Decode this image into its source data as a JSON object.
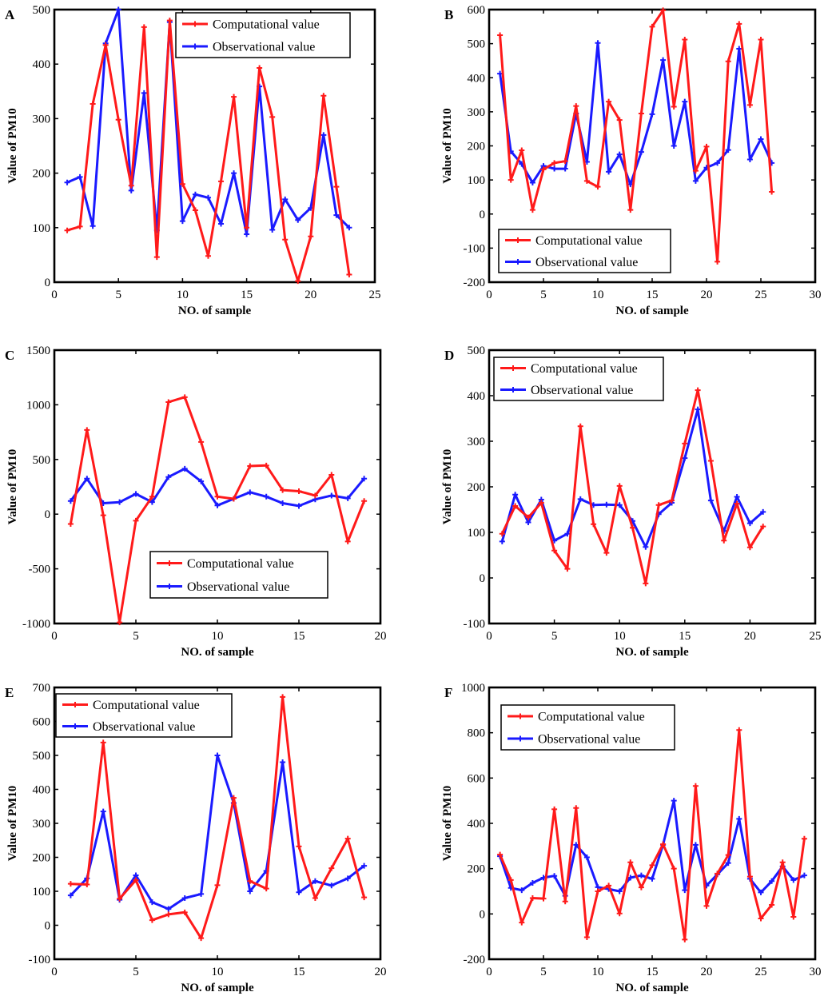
{
  "figure": {
    "colors": {
      "computational": "#ff1a1a",
      "observational": "#1a1aff"
    }
  },
  "chart_data": [
    {
      "panel": "A",
      "type": "line",
      "xlabel": "NO. of sample",
      "ylabel": "Value of PM10",
      "xlim": [
        0,
        25
      ],
      "ylim": [
        0,
        500
      ],
      "xticks": [
        0,
        5,
        10,
        15,
        20,
        25
      ],
      "yticks": [
        0,
        100,
        200,
        300,
        400,
        500
      ],
      "legend": "top-right",
      "series": [
        {
          "name": "Computational value",
          "color": "#ff1a1a",
          "x": [
            1,
            2,
            3,
            4,
            5,
            6,
            7,
            8,
            9,
            10,
            11,
            12,
            13,
            14,
            15,
            16,
            17,
            18,
            19,
            20,
            21,
            22,
            23
          ],
          "values": [
            95,
            102,
            327,
            435,
            298,
            177,
            468,
            46,
            480,
            180,
            132,
            48,
            185,
            340,
            100,
            393,
            303,
            78,
            2,
            84,
            342,
            175,
            14
          ]
        },
        {
          "name": "Observational value",
          "color": "#1a1aff",
          "x": [
            1,
            2,
            3,
            4,
            5,
            6,
            7,
            8,
            9,
            10,
            11,
            12,
            13,
            14,
            15,
            16,
            17,
            18,
            19,
            20,
            21,
            22,
            23
          ],
          "values": [
            183,
            193,
            103,
            438,
            500,
            168,
            347,
            95,
            477,
            112,
            161,
            155,
            107,
            200,
            88,
            359,
            96,
            152,
            114,
            136,
            270,
            123,
            100
          ]
        }
      ]
    },
    {
      "panel": "B",
      "type": "line",
      "xlabel": "NO. of sample",
      "ylabel": "Value of PM10",
      "xlim": [
        0,
        30
      ],
      "ylim": [
        -200,
        600
      ],
      "xticks": [
        0,
        5,
        10,
        15,
        20,
        25,
        30
      ],
      "yticks": [
        -200,
        -100,
        0,
        100,
        200,
        300,
        400,
        500,
        600
      ],
      "legend": "bottom-left",
      "series": [
        {
          "name": "Computational value",
          "color": "#ff1a1a",
          "x": [
            1,
            2,
            3,
            4,
            5,
            6,
            7,
            8,
            9,
            10,
            11,
            12,
            13,
            14,
            15,
            16,
            17,
            18,
            19,
            20,
            21,
            22,
            23,
            24,
            25,
            26
          ],
          "values": [
            525,
            100,
            187,
            12,
            131,
            150,
            155,
            317,
            97,
            80,
            330,
            276,
            12,
            295,
            550,
            598,
            315,
            512,
            127,
            198,
            -140,
            448,
            558,
            320,
            512,
            65
          ]
        },
        {
          "name": "Observational value",
          "color": "#1a1aff",
          "x": [
            1,
            2,
            3,
            4,
            5,
            6,
            7,
            8,
            9,
            10,
            11,
            12,
            13,
            14,
            15,
            16,
            17,
            18,
            19,
            20,
            21,
            22,
            23,
            24,
            25,
            26
          ],
          "values": [
            412,
            184,
            147,
            92,
            141,
            133,
            133,
            295,
            153,
            502,
            124,
            175,
            87,
            182,
            293,
            452,
            200,
            330,
            97,
            136,
            150,
            188,
            485,
            160,
            220,
            150
          ]
        }
      ]
    },
    {
      "panel": "C",
      "type": "line",
      "xlabel": "NO. of sample",
      "ylabel": "Value of PM10",
      "xlim": [
        0,
        20
      ],
      "ylim": [
        -1000,
        1500
      ],
      "xticks": [
        0,
        5,
        10,
        15,
        20
      ],
      "yticks": [
        -1000,
        -500,
        0,
        500,
        1000,
        1500
      ],
      "legend": "bottom-right",
      "series": [
        {
          "name": "Computational value",
          "color": "#ff1a1a",
          "x": [
            1,
            2,
            3,
            4,
            5,
            6,
            7,
            8,
            9,
            10,
            11,
            12,
            13,
            14,
            15,
            16,
            17,
            18,
            19
          ],
          "values": [
            -90,
            770,
            -10,
            -990,
            -60,
            160,
            1025,
            1070,
            660,
            160,
            140,
            440,
            445,
            220,
            210,
            170,
            360,
            -250,
            120
          ]
        },
        {
          "name": "Observational value",
          "color": "#1a1aff",
          "x": [
            1,
            2,
            3,
            4,
            5,
            6,
            7,
            8,
            9,
            10,
            11,
            12,
            13,
            14,
            15,
            16,
            17,
            18,
            19
          ],
          "values": [
            120,
            325,
            100,
            110,
            185,
            110,
            340,
            415,
            300,
            80,
            140,
            200,
            160,
            100,
            75,
            135,
            170,
            145,
            325
          ]
        }
      ]
    },
    {
      "panel": "D",
      "type": "line",
      "xlabel": "NO. of sample",
      "ylabel": "Value of PM10",
      "xlim": [
        0,
        25
      ],
      "ylim": [
        -100,
        500
      ],
      "xticks": [
        0,
        5,
        10,
        15,
        20,
        25
      ],
      "yticks": [
        -100,
        0,
        100,
        200,
        300,
        400,
        500
      ],
      "legend": "top-left",
      "series": [
        {
          "name": "Computational value",
          "color": "#ff1a1a",
          "x": [
            1,
            2,
            3,
            4,
            5,
            6,
            7,
            8,
            9,
            10,
            11,
            12,
            13,
            14,
            15,
            16,
            17,
            18,
            19,
            20,
            21
          ],
          "values": [
            97,
            158,
            133,
            165,
            60,
            20,
            333,
            118,
            55,
            202,
            110,
            -12,
            160,
            170,
            295,
            412,
            257,
            82,
            163,
            67,
            113
          ]
        },
        {
          "name": "Observational value",
          "color": "#1a1aff",
          "x": [
            1,
            2,
            3,
            4,
            5,
            6,
            7,
            8,
            9,
            10,
            11,
            12,
            13,
            14,
            15,
            16,
            17,
            18,
            19,
            20,
            21
          ],
          "values": [
            80,
            183,
            122,
            172,
            82,
            97,
            173,
            160,
            161,
            160,
            125,
            68,
            140,
            165,
            263,
            370,
            170,
            103,
            178,
            120,
            145
          ]
        }
      ]
    },
    {
      "panel": "E",
      "type": "line",
      "xlabel": "NO. of sample",
      "ylabel": "Value of PM10",
      "xlim": [
        0,
        20
      ],
      "ylim": [
        -100,
        700
      ],
      "xticks": [
        0,
        5,
        10,
        15,
        20
      ],
      "yticks": [
        -100,
        0,
        100,
        200,
        300,
        400,
        500,
        600,
        700
      ],
      "legend": "top-left",
      "series": [
        {
          "name": "Computational value",
          "color": "#ff1a1a",
          "x": [
            1,
            2,
            3,
            4,
            5,
            6,
            7,
            8,
            9,
            10,
            11,
            12,
            13,
            14,
            15,
            16,
            17,
            18,
            19
          ],
          "values": [
            122,
            120,
            538,
            78,
            133,
            15,
            32,
            38,
            -38,
            118,
            375,
            130,
            108,
            672,
            232,
            80,
            168,
            255,
            82
          ]
        },
        {
          "name": "Observational value",
          "color": "#1a1aff",
          "x": [
            1,
            2,
            3,
            4,
            5,
            6,
            7,
            8,
            9,
            10,
            11,
            12,
            13,
            14,
            15,
            16,
            17,
            18,
            19
          ],
          "values": [
            88,
            138,
            335,
            75,
            147,
            68,
            48,
            80,
            92,
            500,
            360,
            100,
            160,
            480,
            97,
            130,
            117,
            138,
            175
          ]
        }
      ]
    },
    {
      "panel": "F",
      "type": "line",
      "xlabel": "NO. of sample",
      "ylabel": "Value of PM10",
      "xlim": [
        0,
        30
      ],
      "ylim": [
        -200,
        1000
      ],
      "xticks": [
        0,
        5,
        10,
        15,
        20,
        25,
        30
      ],
      "yticks": [
        -200,
        0,
        200,
        400,
        600,
        800,
        1000
      ],
      "legend": "top-left",
      "series": [
        {
          "name": "Computational value",
          "color": "#ff1a1a",
          "x": [
            1,
            2,
            3,
            4,
            5,
            6,
            7,
            8,
            9,
            10,
            11,
            12,
            13,
            14,
            15,
            16,
            17,
            18,
            19,
            20,
            21,
            22,
            23,
            24,
            25,
            26,
            27,
            28,
            29
          ],
          "values": [
            262,
            150,
            -38,
            70,
            68,
            462,
            55,
            468,
            -103,
            100,
            125,
            2,
            228,
            117,
            215,
            308,
            200,
            -113,
            565,
            35,
            178,
            260,
            812,
            165,
            -20,
            40,
            228,
            -13,
            332
          ]
        },
        {
          "name": "Observational value",
          "color": "#1a1aff",
          "x": [
            1,
            2,
            3,
            4,
            5,
            6,
            7,
            8,
            9,
            10,
            11,
            12,
            13,
            14,
            15,
            16,
            17,
            18,
            19,
            20,
            21,
            22,
            23,
            24,
            25,
            26,
            27,
            28,
            29
          ],
          "values": [
            255,
            115,
            105,
            137,
            160,
            168,
            80,
            305,
            250,
            118,
            110,
            100,
            160,
            170,
            155,
            305,
            500,
            105,
            305,
            125,
            175,
            225,
            420,
            155,
            95,
            145,
            210,
            150,
            170
          ]
        }
      ]
    }
  ]
}
